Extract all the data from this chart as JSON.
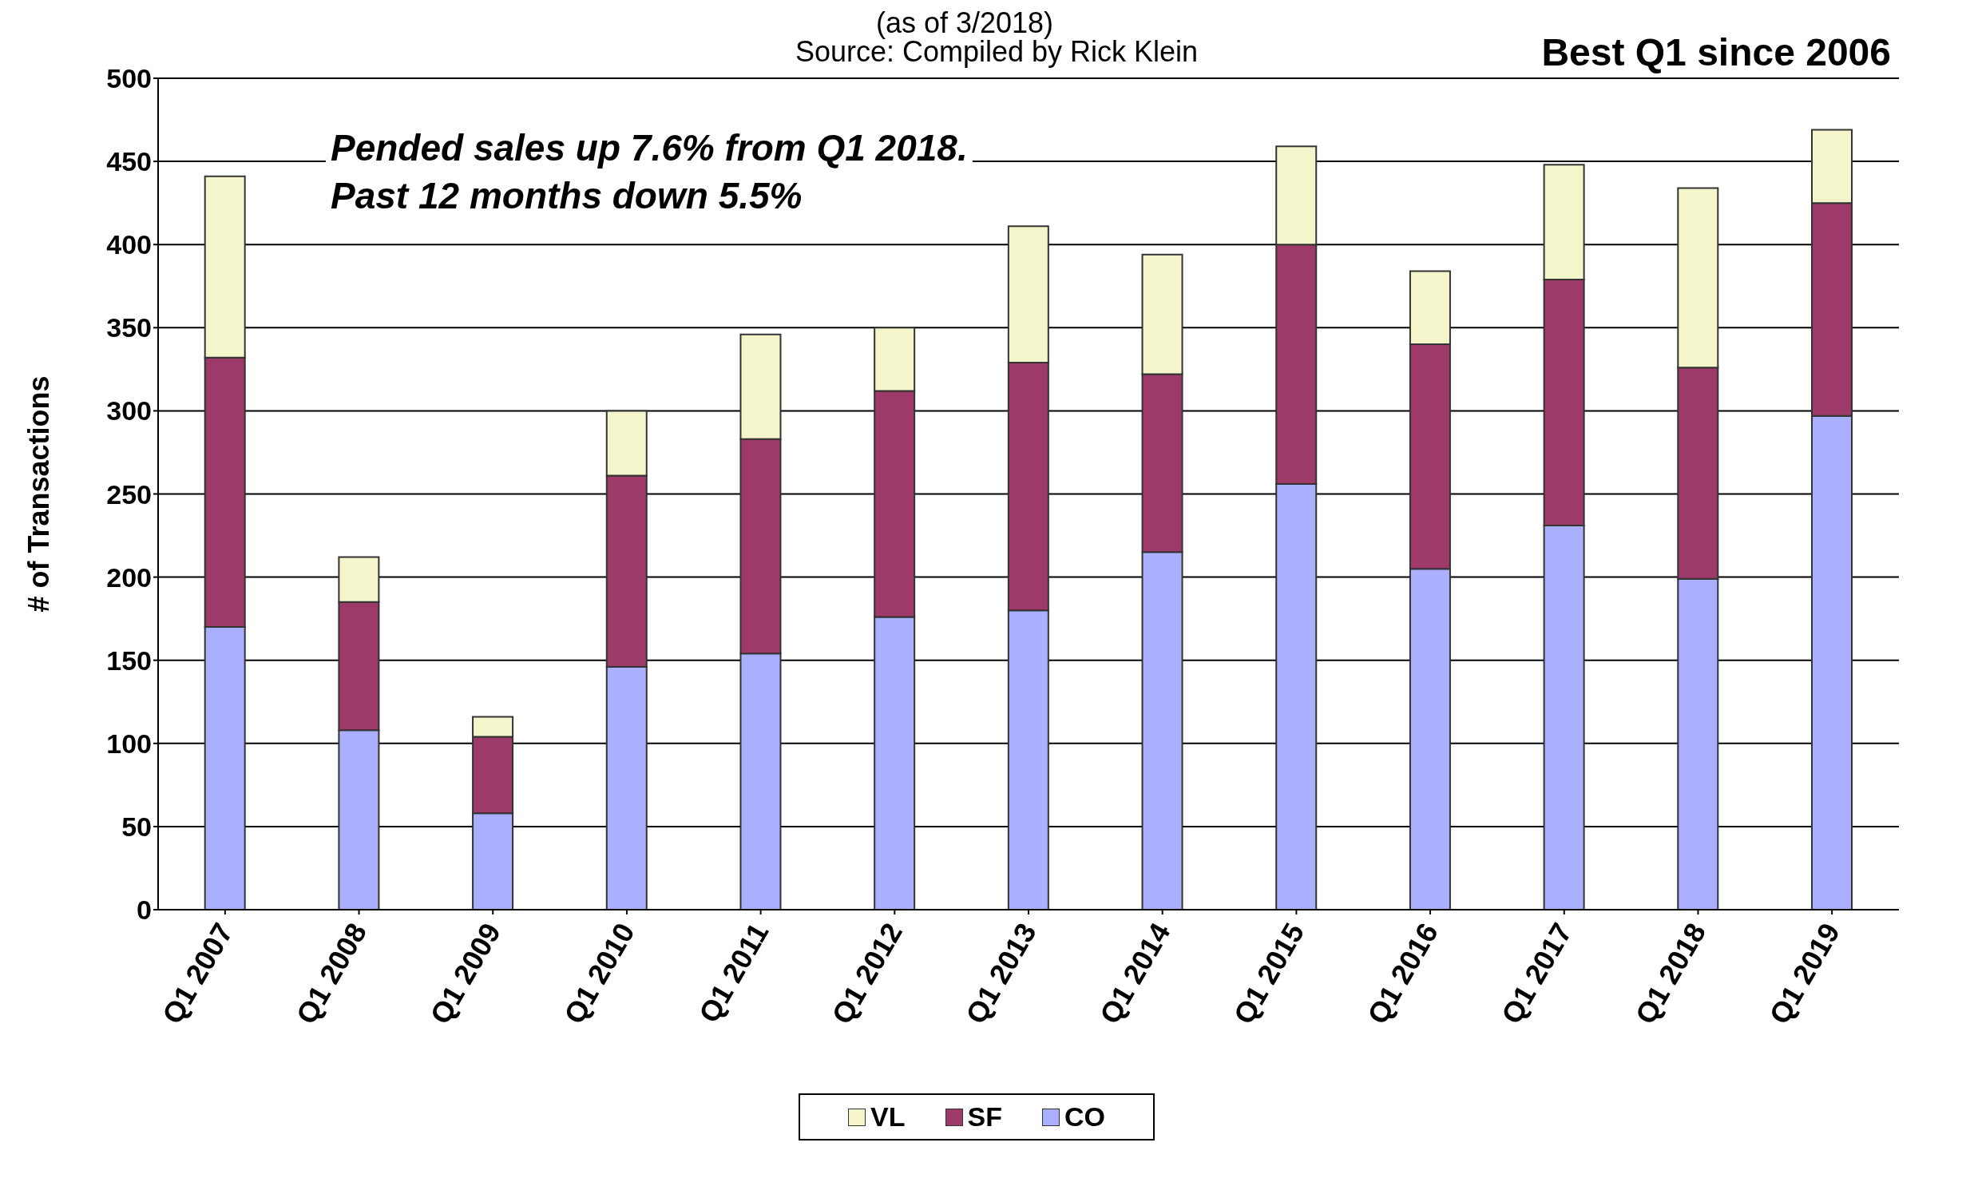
{
  "chart_data": {
    "type": "bar",
    "stacked": true,
    "subtitle": "(as of 3/2018)",
    "ylabel": "# of Transactions",
    "annotations": [
      "Source: Compiled by Rick Klein",
      "Pended sales up 7.6% from Q1 2018.",
      "Past 12 months down 5.5%",
      "Best Q1 since 2006"
    ],
    "categories": [
      "Q1 2007",
      "Q1 2008",
      "Q1 2009",
      "Q1 2010",
      "Q1 2011",
      "Q1 2012",
      "Q1 2013",
      "Q1 2014",
      "Q1 2015",
      "Q1 2016",
      "Q1 2017",
      "Q1 2018",
      "Q1 2019"
    ],
    "series": [
      {
        "name": "CO",
        "color": "#aab0ff",
        "values": [
          170,
          108,
          58,
          146,
          154,
          176,
          180,
          215,
          256,
          205,
          231,
          199,
          297
        ]
      },
      {
        "name": "SF",
        "color": "#9e3a6a",
        "values": [
          162,
          77,
          46,
          115,
          129,
          136,
          149,
          107,
          144,
          135,
          148,
          127,
          128
        ]
      },
      {
        "name": "VL",
        "color": "#f5f5cc",
        "values": [
          109,
          27,
          12,
          39,
          63,
          38,
          82,
          72,
          59,
          44,
          69,
          108,
          44
        ]
      }
    ],
    "ylim": [
      0,
      500
    ],
    "yticks": [
      0,
      50,
      100,
      150,
      200,
      250,
      300,
      350,
      400,
      450,
      500
    ],
    "grid": "y",
    "legend": "bottom"
  }
}
